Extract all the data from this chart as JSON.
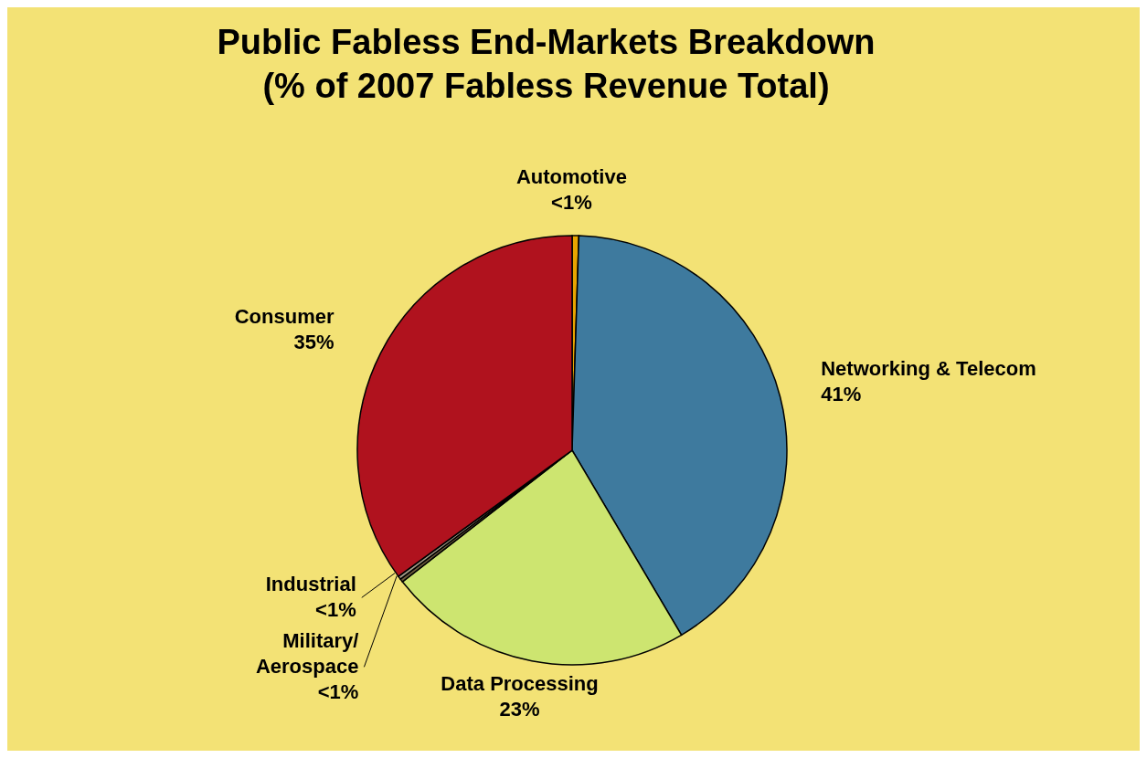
{
  "chart_data": {
    "type": "pie",
    "title": "Public Fabless End-Markets Breakdown",
    "subtitle": "(% of 2007 Fabless Revenue Total)",
    "categories": [
      "Automotive",
      "Networking & Telecom",
      "Data Processing",
      "Military/ Aerospace",
      "Industrial",
      "Consumer"
    ],
    "values": [
      0.5,
      41,
      23,
      0.25,
      0.25,
      35
    ],
    "colors": [
      "#e8a400",
      "#3e7a9e",
      "#cde570",
      "#6b5a3c",
      "#a19a86",
      "#b0121e"
    ],
    "value_labels": [
      "<1%",
      "41%",
      "23%",
      "<1%",
      "<1%",
      "35%"
    ],
    "legend": false
  }
}
